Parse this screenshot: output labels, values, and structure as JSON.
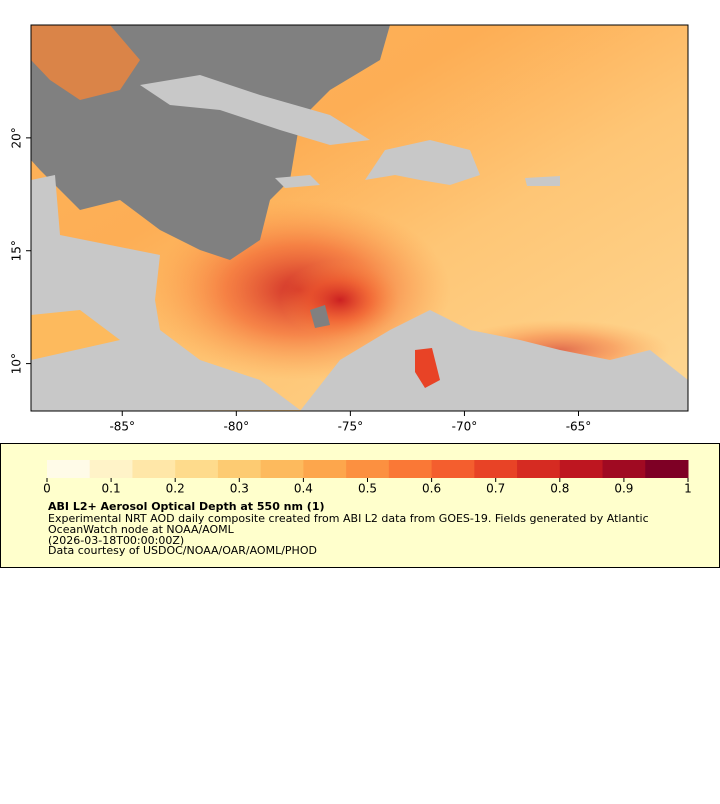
{
  "map": {
    "xlim": [
      -89,
      -60.2
    ],
    "ylim": [
      7.9,
      25
    ],
    "xticks": [
      {
        "value": -85,
        "label": "-85°"
      },
      {
        "value": -80,
        "label": "-80°"
      },
      {
        "value": -75,
        "label": "-75°"
      },
      {
        "value": -70,
        "label": "-70°"
      },
      {
        "value": -65,
        "label": "-65°"
      }
    ],
    "yticks": [
      {
        "value": 10,
        "label": "10°"
      },
      {
        "value": 15,
        "label": "15°"
      },
      {
        "value": 20,
        "label": "20°"
      }
    ]
  },
  "legend": {
    "clim": [
      0,
      1
    ],
    "ticks": [
      0,
      0.1,
      0.2,
      0.3,
      0.4,
      0.5,
      0.6,
      0.7,
      0.8,
      0.9,
      1
    ],
    "colors": [
      "#fffbe8",
      "#fff3c8",
      "#ffe7a8",
      "#fedb8c",
      "#fdcb72",
      "#fdba5d",
      "#fda64c",
      "#fc9040",
      "#fa7836",
      "#f45e2e",
      "#e84326",
      "#d62b22",
      "#be1620",
      "#a00a22",
      "#7e0025"
    ],
    "title": "ABI L2+ Aerosol Optical Depth at 550 nm (1)",
    "lines": [
      "Experimental NRT AOD daily composite created from ABI L2 data from GOES-19. Fields generated by Atlantic",
      "OceanWatch node at NOAA/AOML",
      "(2026-03-18T00:00:00Z)",
      "Data courtesy of USDOC/NOAA/OAR/AOML/PHOD"
    ]
  }
}
